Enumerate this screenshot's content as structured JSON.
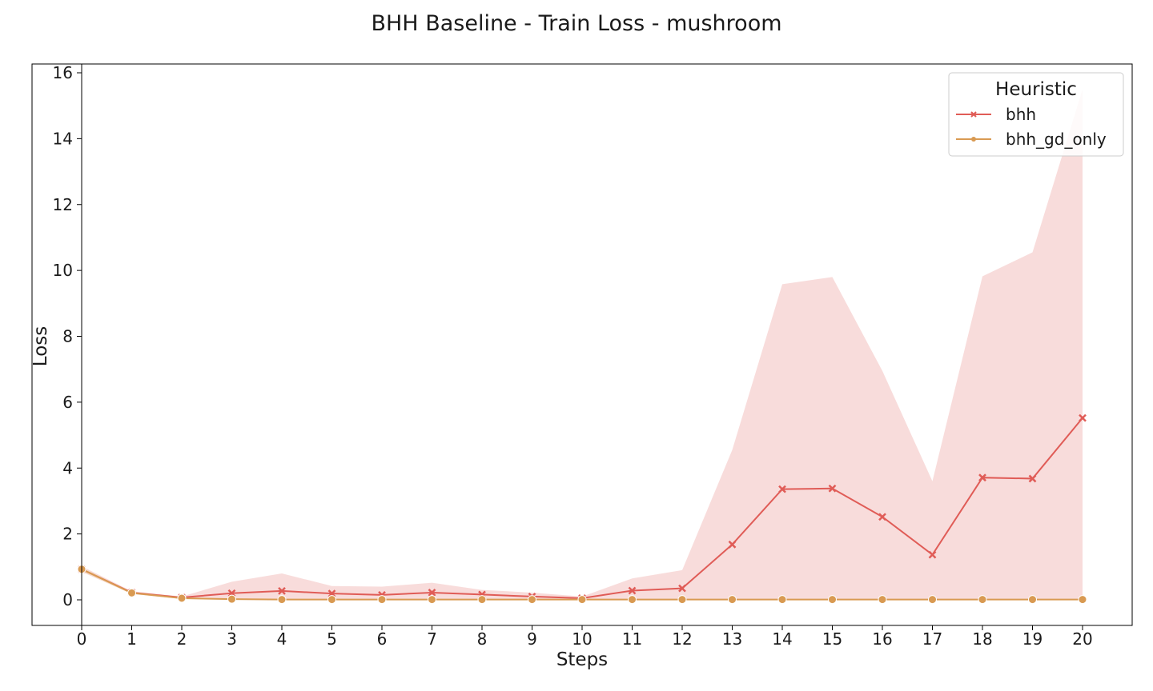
{
  "chart_data": {
    "type": "line",
    "title": "BHH Baseline - Train Loss - mushroom",
    "xlabel": "Steps",
    "ylabel": "Loss",
    "x": [
      0,
      1,
      2,
      3,
      4,
      5,
      6,
      7,
      8,
      9,
      10,
      11,
      12,
      13,
      14,
      15,
      16,
      17,
      18,
      19,
      20
    ],
    "xticks": [
      "0",
      "1",
      "2",
      "3",
      "4",
      "5",
      "6",
      "7",
      "8",
      "9",
      "10",
      "11",
      "12",
      "13",
      "14",
      "15",
      "16",
      "17",
      "18",
      "19",
      "20"
    ],
    "yticks": [
      "0",
      "2",
      "4",
      "6",
      "8",
      "10",
      "12",
      "14",
      "16"
    ],
    "xlim": [
      0,
      20
    ],
    "ylim": [
      -0.8,
      16.3
    ],
    "grid": false,
    "legend": {
      "title": "Heuristic",
      "placement": "top-right"
    },
    "series": [
      {
        "name": "bhh",
        "color": "#e05c57",
        "band_color": "#f4c4c3",
        "marker": "x",
        "values": [
          0.93,
          0.22,
          0.07,
          0.2,
          0.27,
          0.19,
          0.15,
          0.22,
          0.16,
          0.1,
          0.05,
          0.28,
          0.35,
          1.68,
          3.36,
          3.38,
          2.52,
          1.37,
          3.71,
          3.68,
          5.52
        ],
        "upper": [
          1.02,
          0.26,
          0.1,
          0.55,
          0.8,
          0.42,
          0.4,
          0.52,
          0.3,
          0.22,
          0.1,
          0.65,
          0.9,
          4.55,
          9.58,
          9.8,
          6.95,
          3.6,
          9.82,
          10.55,
          15.5
        ],
        "lower": [
          0.85,
          0.18,
          0.03,
          0.0,
          0.0,
          0.0,
          0.0,
          0.0,
          0.0,
          0.0,
          0.0,
          0.0,
          0.0,
          0.0,
          0.0,
          0.0,
          0.0,
          0.0,
          0.0,
          0.0,
          0.0
        ]
      },
      {
        "name": "bhh_gd_only",
        "color": "#d99a52",
        "band_color": "#f3dcc0",
        "marker": "o",
        "values": [
          0.93,
          0.21,
          0.05,
          0.02,
          0.01,
          0.01,
          0.01,
          0.01,
          0.01,
          0.01,
          0.01,
          0.01,
          0.01,
          0.01,
          0.01,
          0.01,
          0.01,
          0.01,
          0.01,
          0.01,
          0.01
        ],
        "upper": [
          1.0,
          0.24,
          0.07,
          0.03,
          0.02,
          0.02,
          0.02,
          0.02,
          0.02,
          0.02,
          0.02,
          0.02,
          0.02,
          0.02,
          0.02,
          0.02,
          0.02,
          0.02,
          0.02,
          0.02,
          0.02
        ],
        "lower": [
          0.86,
          0.18,
          0.03,
          0.01,
          0.0,
          0.0,
          0.0,
          0.0,
          0.0,
          0.0,
          0.0,
          0.0,
          0.0,
          0.0,
          0.0,
          0.0,
          0.0,
          0.0,
          0.0,
          0.0,
          0.0
        ]
      }
    ]
  }
}
